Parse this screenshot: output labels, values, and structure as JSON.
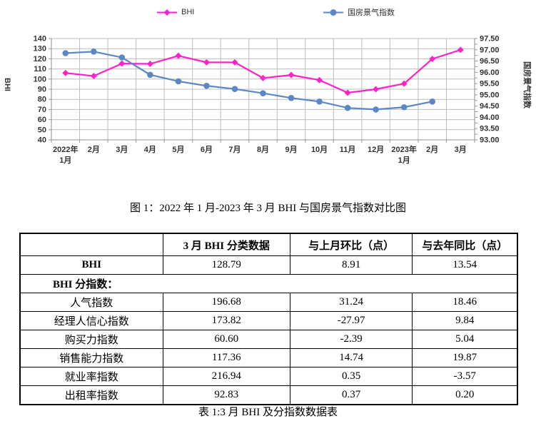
{
  "chart": {
    "left_axis_title": "BHI",
    "right_axis_title": "国房景气指数",
    "legend_position": "top"
  },
  "chart_data": {
    "type": "line",
    "title": "",
    "categories": [
      "2022年1月",
      "2月",
      "3月",
      "4月",
      "5月",
      "6月",
      "7月",
      "8月",
      "9月",
      "10月",
      "11月",
      "12月",
      "2023年1月",
      "2月",
      "3月"
    ],
    "series": [
      {
        "name": "BHI",
        "axis": "left",
        "color": "#FF22C8",
        "marker": "diamond",
        "values": [
          106.0,
          103.0,
          115.25,
          115.0,
          123.0,
          116.5,
          116.5,
          101.0,
          104.0,
          99.0,
          86.5,
          90.0,
          95.5,
          119.88,
          128.79
        ]
      },
      {
        "name": "国房景气指数",
        "axis": "right",
        "color": "#5B88C4",
        "marker": "circle",
        "values": [
          96.85,
          96.92,
          96.66,
          95.89,
          95.6,
          95.4,
          95.26,
          95.07,
          94.86,
          94.7,
          94.42,
          94.35,
          94.45,
          94.7,
          null
        ]
      }
    ],
    "left_axis": {
      "range": [
        40,
        140
      ],
      "step": 10,
      "tick_format": "int"
    },
    "right_axis": {
      "range": [
        93.0,
        97.5
      ],
      "step": 0.5,
      "minor_step": 0.25,
      "tick_format": "2dp"
    },
    "grid": true,
    "legend_position": "top"
  },
  "figure_caption": "图 1：2022 年 1 月-2023 年 3 月 BHI 与国房景气指数对比图",
  "table": {
    "headers": [
      "",
      "3 月 BHI 分类数据",
      "与上月环比（点）",
      "与去年同比（点）"
    ],
    "col_widths_pct": [
      28.7,
      25.6,
      24.6,
      21.1
    ],
    "rows": [
      {
        "label": "BHI",
        "bold": true,
        "merged": false,
        "values": [
          "128.79",
          "8.91",
          "13.54"
        ]
      },
      {
        "label": "BHI 分指数：",
        "bold": true,
        "merged": true,
        "values": []
      },
      {
        "label": "人气指数",
        "bold": false,
        "merged": false,
        "values": [
          "196.68",
          "31.24",
          "18.46"
        ]
      },
      {
        "label": "经理人信心指数",
        "bold": false,
        "merged": false,
        "values": [
          "173.82",
          "-27.97",
          "9.84"
        ]
      },
      {
        "label": "购买力指数",
        "bold": false,
        "merged": false,
        "values": [
          "60.60",
          "-2.39",
          "5.04"
        ]
      },
      {
        "label": "销售能力指数",
        "bold": false,
        "merged": false,
        "values": [
          "117.36",
          "14.74",
          "19.87"
        ]
      },
      {
        "label": "就业率指数",
        "bold": false,
        "merged": false,
        "values": [
          "216.94",
          "0.35",
          "-3.57"
        ]
      },
      {
        "label": "出租率指数",
        "bold": false,
        "merged": false,
        "values": [
          "92.83",
          "0.37",
          "0.20"
        ]
      }
    ]
  },
  "table_caption": "表 1:3 月 BHI 及分指数数据表"
}
